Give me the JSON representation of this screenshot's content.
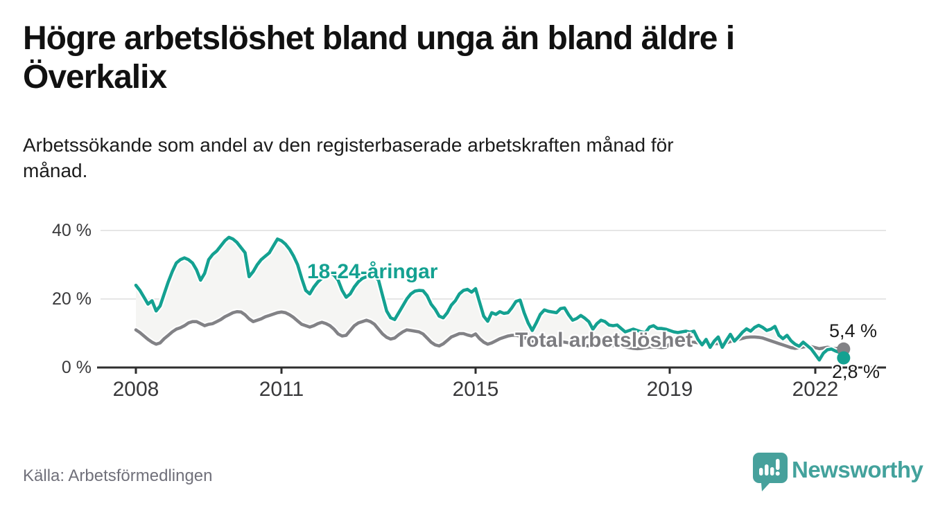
{
  "header": {
    "title": "Högre arbetslöshet bland unga än bland äldre i\nÖverkalix",
    "subtitle": "Arbetssökande som andel av den registerbaserade arbetskraften månad för\nmånad."
  },
  "footer": {
    "source": "Källa: Arbetsförmedlingen",
    "brand": "Newsworthy"
  },
  "colors": {
    "youth_line": "#14a191",
    "total_line": "#828286",
    "total_label": "#7c7c80",
    "fill_between": "#f5f5f3",
    "gridline": "#dedede",
    "axis": "#2e2e2e",
    "brand_teal": "#43a29c"
  },
  "chart_data": {
    "type": "line",
    "x_start": "2008-01",
    "x_end": "2022-08",
    "x_ticks": [
      "2008",
      "2011",
      "2015",
      "2019",
      "2022"
    ],
    "x_tick_years": [
      2008,
      2011,
      2015,
      2019,
      2022
    ],
    "y_ticks": [
      "0 %",
      "20 %",
      "40 %"
    ],
    "y_tick_values": [
      0,
      20,
      40
    ],
    "ylim": [
      0,
      42
    ],
    "grid": "horizontal",
    "legend_position": "inline-labels",
    "series": [
      {
        "name": "Total arbetslöshet",
        "color": "#828286",
        "end_label": "5,4 %",
        "end_value": 5.4,
        "values": [
          11.0,
          10.2,
          9.2,
          8.2,
          7.4,
          6.8,
          7.2,
          8.4,
          9.4,
          10.4,
          11.2,
          11.6,
          12.2,
          13.0,
          13.4,
          13.4,
          12.8,
          12.2,
          12.6,
          12.8,
          13.4,
          14.0,
          14.8,
          15.4,
          16.0,
          16.3,
          16.2,
          15.4,
          14.2,
          13.4,
          13.8,
          14.2,
          14.8,
          15.2,
          15.6,
          16.0,
          16.2,
          16.0,
          15.4,
          14.6,
          13.6,
          12.6,
          12.2,
          11.8,
          12.2,
          12.8,
          13.2,
          12.8,
          12.2,
          11.2,
          9.8,
          9.2,
          9.4,
          10.8,
          12.2,
          13.0,
          13.4,
          13.8,
          13.4,
          12.6,
          11.2,
          9.8,
          8.8,
          8.3,
          8.6,
          9.6,
          10.4,
          11.0,
          10.8,
          10.6,
          10.4,
          9.8,
          8.6,
          7.4,
          6.6,
          6.3,
          6.9,
          7.9,
          8.9,
          9.4,
          9.9,
          9.9,
          9.5,
          9.2,
          9.8,
          8.4,
          7.4,
          6.8,
          7.2,
          7.8,
          8.4,
          8.8,
          9.2,
          9.4,
          9.4,
          9.2,
          8.8,
          8.2,
          7.6,
          7.2,
          7.0,
          7.2,
          7.6,
          7.8,
          7.8,
          7.6,
          7.4,
          7.2,
          7.0,
          6.8,
          6.6,
          6.4,
          6.3,
          6.4,
          6.6,
          6.8,
          6.8,
          6.6,
          6.4,
          6.3,
          6.2,
          6.0,
          5.8,
          5.6,
          5.5,
          5.6,
          5.8,
          6.0,
          6.0,
          5.9,
          5.8,
          5.9,
          6.8,
          6.9,
          7.0,
          7.1,
          7.2,
          7.3,
          7.4,
          7.2,
          7.0,
          6.9,
          7.0,
          7.0,
          7.0,
          6.9,
          7.2,
          7.6,
          7.9,
          8.2,
          8.5,
          8.8,
          8.9,
          8.9,
          8.8,
          8.6,
          8.2,
          7.8,
          7.4,
          7.0,
          6.6,
          6.2,
          5.8,
          5.6,
          5.8,
          6.0,
          6.2,
          6.1,
          5.8,
          5.5,
          5.7,
          5.9,
          5.7,
          5.5,
          5.7,
          5.4
        ]
      },
      {
        "name": "18-24-åringar",
        "color": "#14a191",
        "end_label": "2,8 %",
        "end_value": 2.8,
        "values": [
          24.0,
          22.5,
          20.5,
          18.5,
          19.5,
          16.5,
          18.0,
          21.5,
          25.0,
          28.0,
          30.5,
          31.5,
          32.0,
          31.5,
          30.5,
          28.5,
          25.5,
          27.5,
          31.5,
          33.0,
          34.0,
          35.5,
          37.0,
          38.0,
          37.5,
          36.5,
          35.0,
          33.5,
          26.5,
          28.0,
          30.0,
          31.5,
          32.5,
          33.5,
          35.5,
          37.5,
          37.0,
          36.0,
          34.5,
          32.5,
          30.0,
          26.0,
          22.5,
          21.5,
          23.5,
          25.0,
          26.0,
          27.0,
          27.5,
          27.0,
          25.5,
          22.5,
          20.5,
          21.5,
          23.5,
          25.0,
          26.0,
          26.5,
          27.0,
          26.5,
          25.5,
          21.0,
          16.5,
          14.5,
          14.0,
          16.0,
          18.0,
          20.0,
          21.5,
          22.3,
          22.5,
          22.4,
          21.0,
          18.5,
          17.0,
          15.0,
          14.5,
          16.0,
          18.2,
          19.5,
          21.5,
          22.5,
          22.8,
          22.0,
          23.0,
          19.0,
          15.0,
          13.5,
          16.0,
          15.5,
          16.3,
          15.8,
          16.0,
          17.5,
          19.3,
          19.7,
          16.0,
          13.0,
          10.8,
          13.0,
          15.5,
          16.8,
          16.4,
          16.2,
          16.0,
          17.2,
          17.4,
          15.4,
          13.8,
          14.3,
          15.2,
          14.4,
          13.4,
          11.2,
          12.8,
          13.8,
          13.4,
          12.4,
          12.2,
          12.4,
          11.4,
          10.4,
          10.8,
          11.2,
          10.8,
          10.4,
          10.2,
          11.8,
          12.2,
          11.4,
          11.4,
          11.2,
          10.8,
          10.4,
          10.2,
          10.4,
          10.6,
          10.3,
          10.6,
          8.2,
          6.6,
          8.2,
          5.9,
          7.7,
          8.9,
          5.9,
          7.9,
          9.7,
          7.7,
          8.9,
          10.3,
          11.3,
          10.6,
          11.7,
          12.3,
          11.7,
          10.8,
          11.2,
          12.0,
          9.4,
          8.4,
          9.4,
          7.8,
          6.8,
          6.2,
          7.4,
          6.4,
          5.4,
          3.8,
          2.2,
          4.2,
          5.2,
          5.4,
          4.8,
          4.4,
          2.8
        ]
      }
    ]
  }
}
